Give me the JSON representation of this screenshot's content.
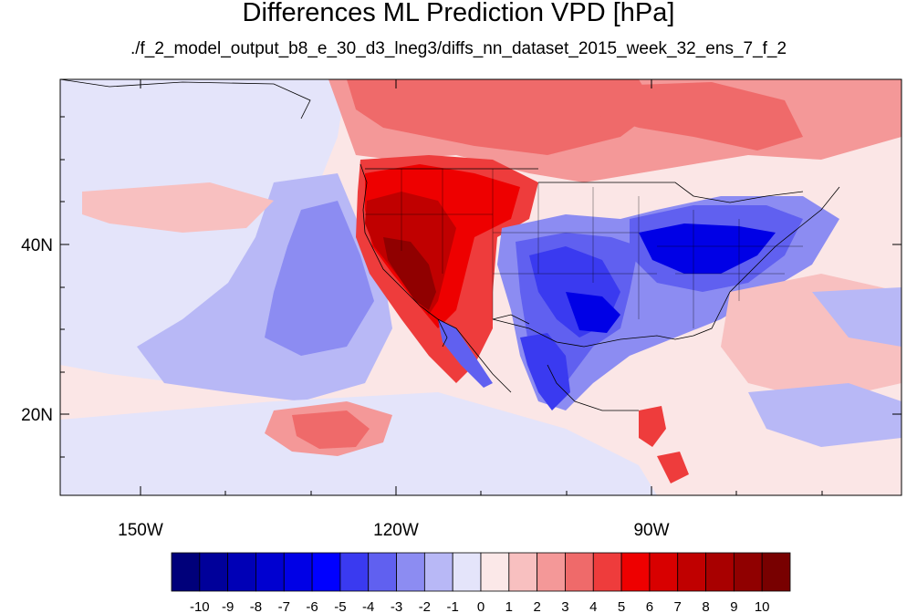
{
  "title": "Differences ML Prediction VPD [hPa]",
  "subtitle": "./f_2_model_output_b8_e_30_d3_lneg3/diffs_nn_dataset_2015_week_32_ens_7_f_2",
  "map": {
    "longitude_ticks": [
      "150W",
      "120W",
      "90W"
    ],
    "latitude_ticks": [
      "40N",
      "20N"
    ]
  },
  "colorbar": {
    "labels": [
      "-10",
      "-9",
      "-8",
      "-7",
      "-6",
      "-5",
      "-4",
      "-3",
      "-2",
      "-1",
      "0",
      "1",
      "2",
      "3",
      "4",
      "5",
      "6",
      "7",
      "8",
      "9",
      "10"
    ],
    "colors": [
      "#00007a",
      "#00009a",
      "#0000b6",
      "#0000d0",
      "#0000e6",
      "#0000ff",
      "#3a3af0",
      "#6060f0",
      "#8c8cf2",
      "#b8b8f6",
      "#e4e4fa",
      "#fbe8e8",
      "#f8c0c0",
      "#f49898",
      "#ef6a6a",
      "#ee3c3c",
      "#ee0000",
      "#d80000",
      "#c00000",
      "#a80000",
      "#900000",
      "#780000"
    ]
  }
}
